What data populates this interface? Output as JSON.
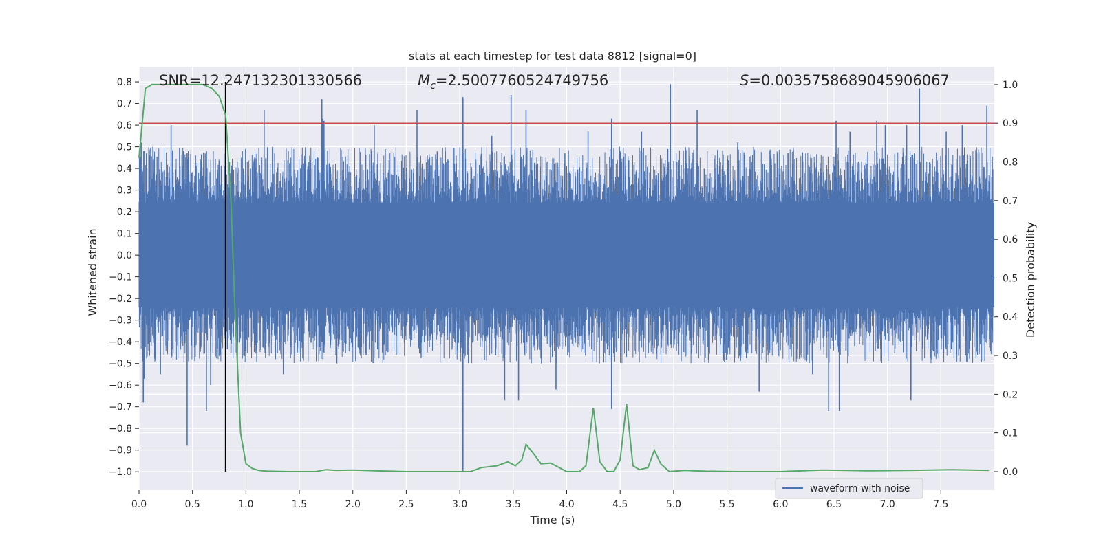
{
  "chart_data": {
    "type": "line",
    "title": "stats at each timestep for test data 8812 [signal=0]",
    "xlabel": "Time (s)",
    "ylabel": "Whitened strain",
    "y2label": "Detection probability",
    "xlim": [
      0.0,
      8.0
    ],
    "ylim": [
      -1.085,
      0.87
    ],
    "y2lim": [
      -0.048,
      1.046
    ],
    "xticks": [
      "0.0",
      "0.5",
      "1.0",
      "1.5",
      "2.0",
      "2.5",
      "3.0",
      "3.5",
      "4.0",
      "4.5",
      "5.0",
      "5.5",
      "6.0",
      "6.5",
      "7.0",
      "7.5"
    ],
    "yticks": [
      "0.8",
      "0.7",
      "0.6",
      "0.5",
      "0.4",
      "0.3",
      "0.2",
      "0.1",
      "0.0",
      "-0.1",
      "-0.2",
      "-0.3",
      "-0.4",
      "-0.5",
      "-0.6",
      "-0.7",
      "-0.8",
      "-0.9",
      "-1.0"
    ],
    "y2ticks": [
      "1.0",
      "0.9",
      "0.8",
      "0.7",
      "0.6",
      "0.5",
      "0.4",
      "0.3",
      "0.2",
      "0.1",
      "0.0"
    ],
    "annotations": {
      "snr": "SNR=12.247132301330566",
      "mc_symbol": "M",
      "mc_sub": "c",
      "mc_value": "=2.5007760524749756",
      "s_symbol": "S",
      "s_value": "=0.0035758689045906067"
    },
    "threshold": 0.9,
    "marker_time": 0.81,
    "marker_range": [
      -1.0,
      0.8
    ],
    "waveform": {
      "name": "waveform with noise",
      "color": "#4c72b0",
      "core_amplitude": 0.24,
      "spikes": [
        {
          "t": 0.02,
          "v": 0.52
        },
        {
          "t": 0.05,
          "v": -0.57
        },
        {
          "t": 0.04,
          "v": -0.68
        },
        {
          "t": 0.13,
          "v": 0.5
        },
        {
          "t": 0.2,
          "v": -0.55
        },
        {
          "t": 0.3,
          "v": 0.6
        },
        {
          "t": 0.45,
          "v": -0.88
        },
        {
          "t": 0.45,
          "v": 0.47
        },
        {
          "t": 0.63,
          "v": -0.72
        },
        {
          "t": 0.67,
          "v": -0.6
        },
        {
          "t": 0.81,
          "v": 0.46
        },
        {
          "t": 0.86,
          "v": -0.45
        },
        {
          "t": 0.92,
          "v": -0.5
        },
        {
          "t": 1.17,
          "v": 0.67
        },
        {
          "t": 1.35,
          "v": -0.55
        },
        {
          "t": 1.72,
          "v": 0.63
        },
        {
          "t": 1.72,
          "v": -0.48
        },
        {
          "t": 1.72,
          "v": 0.6
        },
        {
          "t": 1.71,
          "v": -0.4
        },
        {
          "t": 1.71,
          "v": 0.5
        },
        {
          "t": 1.73,
          "v": 0.62
        },
        {
          "t": 1.73,
          "v": -0.45
        },
        {
          "t": 1.71,
          "v": 0.72
        },
        {
          "t": 1.85,
          "v": -0.5
        },
        {
          "t": 2.2,
          "v": 0.6
        },
        {
          "t": 2.6,
          "v": 0.67
        },
        {
          "t": 3.03,
          "v": 0.73
        },
        {
          "t": 3.03,
          "v": -1.0
        },
        {
          "t": 3.3,
          "v": 0.55
        },
        {
          "t": 3.42,
          "v": -0.67
        },
        {
          "t": 3.48,
          "v": 0.74
        },
        {
          "t": 3.55,
          "v": -0.67
        },
        {
          "t": 3.62,
          "v": 0.67
        },
        {
          "t": 3.9,
          "v": -0.62
        },
        {
          "t": 4.2,
          "v": 0.57
        },
        {
          "t": 4.42,
          "v": -0.71
        },
        {
          "t": 4.42,
          "v": 0.63
        },
        {
          "t": 4.7,
          "v": 0.57
        },
        {
          "t": 4.97,
          "v": 0.79
        },
        {
          "t": 5.22,
          "v": 0.67
        },
        {
          "t": 5.6,
          "v": 0.52
        },
        {
          "t": 5.8,
          "v": -0.63
        },
        {
          "t": 6.07,
          "v": 0.47
        },
        {
          "t": 6.3,
          "v": -0.55
        },
        {
          "t": 6.45,
          "v": -0.72
        },
        {
          "t": 6.52,
          "v": 0.62
        },
        {
          "t": 6.55,
          "v": -0.72
        },
        {
          "t": 6.65,
          "v": 0.57
        },
        {
          "t": 6.9,
          "v": 0.62
        },
        {
          "t": 6.98,
          "v": 0.6
        },
        {
          "t": 7.18,
          "v": 0.6
        },
        {
          "t": 7.22,
          "v": -0.67
        },
        {
          "t": 7.3,
          "v": 0.77
        },
        {
          "t": 7.55,
          "v": 0.57
        },
        {
          "t": 7.7,
          "v": 0.6
        },
        {
          "t": 7.93,
          "v": 0.69
        }
      ]
    },
    "probability": {
      "color": "#55a868",
      "t": [
        0.0,
        0.06,
        0.12,
        0.2,
        0.35,
        0.5,
        0.6,
        0.68,
        0.75,
        0.81,
        0.86,
        0.9,
        0.95,
        1.0,
        1.06,
        1.12,
        1.2,
        1.4,
        1.65,
        1.75,
        1.85,
        2.0,
        2.2,
        2.5,
        2.8,
        3.0,
        3.1,
        3.2,
        3.35,
        3.45,
        3.52,
        3.58,
        3.62,
        3.68,
        3.76,
        3.85,
        4.0,
        4.12,
        4.18,
        4.25,
        4.31,
        4.38,
        4.44,
        4.5,
        4.56,
        4.62,
        4.68,
        4.76,
        4.82,
        4.88,
        4.96,
        5.1,
        5.3,
        5.6,
        6.0,
        6.4,
        6.8,
        7.2,
        7.6,
        7.95
      ],
      "p": [
        0.81,
        0.99,
        1.0,
        1.0,
        1.0,
        1.0,
        1.0,
        0.99,
        0.97,
        0.92,
        0.7,
        0.4,
        0.1,
        0.02,
        0.008,
        0.003,
        0.001,
        0.0,
        0.0,
        0.005,
        0.003,
        0.004,
        0.002,
        0.0,
        0.0,
        0.0,
        0.0,
        0.01,
        0.015,
        0.025,
        0.015,
        0.03,
        0.07,
        0.05,
        0.02,
        0.022,
        0.0,
        0.0,
        0.015,
        0.165,
        0.025,
        0.0,
        0.0,
        0.03,
        0.175,
        0.015,
        0.005,
        0.01,
        0.055,
        0.02,
        0.0,
        0.003,
        0.001,
        0.0,
        0.0,
        0.004,
        0.002,
        0.003,
        0.005,
        0.003
      ]
    },
    "threshold_color": "#c44e52",
    "marker_color": "#000000",
    "legend": {
      "entries": [
        "waveform with noise"
      ],
      "placement": "lower-right"
    }
  }
}
